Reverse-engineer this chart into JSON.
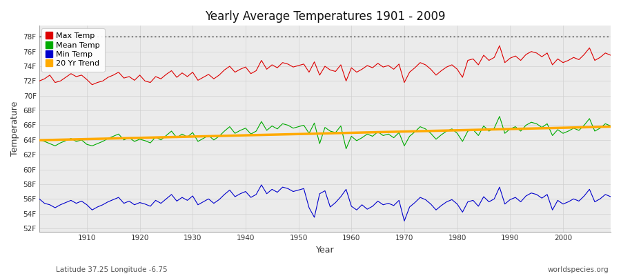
{
  "title": "Yearly Average Temperatures 1901 - 2009",
  "xlabel": "Year",
  "ylabel": "Temperature",
  "subtitle_left": "Latitude 37.25 Longitude -6.75",
  "subtitle_right": "worldspecies.org",
  "years_start": 1901,
  "years_end": 2009,
  "max_temps": [
    72.0,
    72.3,
    72.8,
    71.8,
    72.0,
    72.5,
    73.0,
    72.6,
    72.8,
    72.2,
    71.5,
    71.8,
    72.0,
    72.5,
    72.8,
    73.2,
    72.4,
    72.6,
    72.1,
    72.8,
    72.0,
    71.8,
    72.6,
    72.3,
    72.9,
    73.4,
    72.5,
    73.1,
    72.6,
    73.2,
    72.1,
    72.5,
    72.9,
    72.3,
    72.8,
    73.5,
    74.0,
    73.2,
    73.6,
    73.9,
    73.0,
    73.4,
    74.8,
    73.6,
    74.2,
    73.8,
    74.5,
    74.3,
    73.9,
    74.1,
    74.3,
    73.2,
    74.6,
    72.8,
    74.0,
    73.5,
    73.3,
    74.2,
    72.0,
    73.8,
    73.2,
    73.6,
    74.1,
    73.8,
    74.4,
    73.9,
    74.1,
    73.6,
    74.3,
    71.8,
    73.2,
    73.8,
    74.5,
    74.2,
    73.6,
    72.8,
    73.4,
    73.9,
    74.2,
    73.6,
    72.5,
    74.8,
    75.0,
    74.2,
    75.5,
    74.8,
    75.2,
    76.8,
    74.5,
    75.1,
    75.4,
    74.8,
    75.6,
    76.0,
    75.8,
    75.3,
    75.8,
    74.2,
    75.0,
    74.5,
    74.8,
    75.2,
    74.9,
    75.6,
    76.5,
    74.8,
    75.2,
    75.8,
    75.5
  ],
  "mean_temps": [
    64.0,
    63.8,
    63.5,
    63.2,
    63.6,
    63.9,
    64.2,
    63.8,
    64.0,
    63.4,
    63.2,
    63.5,
    63.8,
    64.2,
    64.5,
    64.8,
    64.0,
    64.3,
    63.8,
    64.1,
    63.9,
    63.6,
    64.4,
    64.0,
    64.6,
    65.2,
    64.3,
    64.8,
    64.4,
    65.0,
    63.8,
    64.2,
    64.6,
    64.0,
    64.5,
    65.2,
    65.8,
    64.9,
    65.3,
    65.6,
    64.8,
    65.2,
    66.5,
    65.3,
    65.9,
    65.5,
    66.2,
    66.0,
    65.6,
    65.8,
    66.0,
    64.9,
    66.3,
    63.5,
    65.7,
    65.2,
    65.0,
    65.9,
    62.8,
    64.5,
    63.9,
    64.3,
    64.8,
    64.5,
    65.1,
    64.6,
    64.8,
    64.3,
    65.0,
    63.2,
    64.5,
    65.1,
    65.8,
    65.5,
    64.9,
    64.1,
    64.7,
    65.2,
    65.5,
    64.9,
    63.8,
    65.2,
    65.4,
    64.6,
    65.9,
    65.2,
    65.6,
    67.2,
    64.9,
    65.5,
    65.8,
    65.2,
    66.0,
    66.4,
    66.2,
    65.7,
    66.2,
    64.6,
    65.4,
    64.9,
    65.2,
    65.6,
    65.3,
    66.0,
    66.9,
    65.2,
    65.6,
    66.2,
    65.9
  ],
  "min_temps": [
    56.0,
    55.4,
    55.2,
    54.8,
    55.2,
    55.5,
    55.8,
    55.4,
    55.7,
    55.2,
    54.5,
    54.9,
    55.2,
    55.6,
    55.9,
    56.2,
    55.4,
    55.7,
    55.2,
    55.5,
    55.3,
    55.0,
    55.8,
    55.4,
    56.0,
    56.6,
    55.7,
    56.2,
    55.8,
    56.4,
    55.2,
    55.6,
    56.0,
    55.4,
    55.9,
    56.6,
    57.2,
    56.3,
    56.7,
    57.0,
    56.2,
    56.6,
    57.9,
    56.7,
    57.3,
    56.9,
    57.6,
    57.4,
    57.0,
    57.2,
    57.4,
    54.8,
    53.5,
    56.7,
    57.1,
    54.9,
    55.5,
    56.3,
    57.3,
    55.0,
    54.5,
    55.2,
    54.6,
    55.0,
    55.7,
    55.2,
    55.4,
    55.1,
    55.8,
    53.0,
    54.9,
    55.5,
    56.2,
    55.9,
    55.3,
    54.5,
    55.1,
    55.6,
    55.9,
    55.3,
    54.2,
    55.6,
    55.8,
    55.0,
    56.3,
    55.6,
    56.0,
    57.6,
    55.3,
    55.9,
    56.2,
    55.6,
    56.4,
    56.8,
    56.6,
    56.1,
    56.6,
    54.5,
    55.8,
    55.3,
    55.6,
    56.0,
    55.7,
    56.4,
    57.3,
    55.6,
    56.0,
    56.6,
    56.3
  ],
  "max_color": "#dd0000",
  "mean_color": "#00aa00",
  "min_color": "#0000cc",
  "trend_color": "#ffaa00",
  "fig_bg_color": "#ffffff",
  "plot_bg_color": "#ebebeb",
  "grid_color": "#d0d0d0",
  "yticks": [
    52,
    54,
    56,
    58,
    60,
    62,
    64,
    66,
    68,
    70,
    72,
    74,
    76,
    78
  ],
  "ylim": [
    51.5,
    79.5
  ],
  "xlim": [
    1901,
    2009
  ],
  "dotted_line_y": 78
}
